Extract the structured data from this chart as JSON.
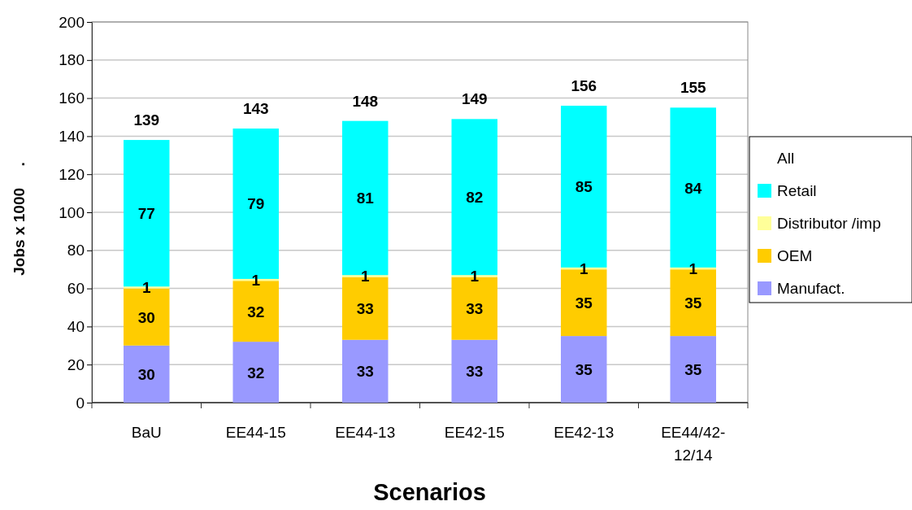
{
  "chart_data": {
    "type": "bar",
    "stacked": true,
    "xlabel": "Scenarios",
    "ylabel": "Jobs x 1000     .",
    "categories": [
      "BaU",
      "EE44-15",
      "EE44-13",
      "EE42-15",
      "EE42-13",
      "EE44/42-12/14"
    ],
    "series": [
      {
        "name": "Manufact.",
        "color": "#9999ff",
        "values": [
          30,
          32,
          33,
          33,
          35,
          35
        ]
      },
      {
        "name": "OEM",
        "color": "#ffcc00",
        "values": [
          30,
          32,
          33,
          33,
          35,
          35
        ]
      },
      {
        "name": "Distributor /imp",
        "color": "#ffff99",
        "values": [
          1,
          1,
          1,
          1,
          1,
          1
        ]
      },
      {
        "name": "Retail",
        "color": "#00ffff",
        "values": [
          77,
          79,
          81,
          82,
          85,
          84
        ]
      }
    ],
    "totals": [
      "139",
      "143",
      "148",
      "149",
      "156",
      "155"
    ],
    "legend_title": "All",
    "ylim": [
      0,
      200
    ],
    "yticks": [
      0,
      20,
      40,
      60,
      80,
      100,
      120,
      140,
      160,
      180,
      200
    ],
    "grid": "y",
    "legend": "right",
    "data_labels": true
  }
}
